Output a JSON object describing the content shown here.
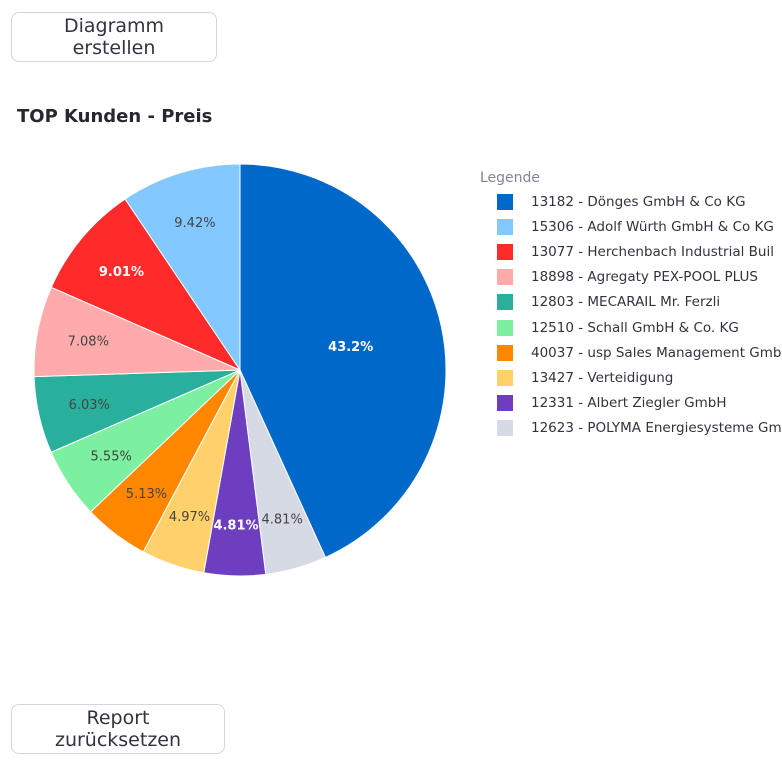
{
  "buttons": {
    "create": "Diagramm erstellen",
    "reset": "Report zurücksetzen"
  },
  "chart_data": {
    "type": "pie",
    "title": "TOP Kunden - Preis",
    "legend_title": "Legende",
    "legend_position": "right",
    "categories": [
      "13182 - Dönges GmbH & Co KG",
      "15306 - Adolf Würth GmbH & Co KG",
      "13077 - Herchenbach Industrial Buil",
      "18898 - Agregaty PEX-POOL PLUS",
      "12803 - MECARAIL Mr. Ferzli",
      "12510 - Schall GmbH & Co. KG",
      "40037 - usp Sales Management Gmb",
      "13427 - Verteidigung",
      "12331 - Albert Ziegler GmbH",
      "12623 - POLYMA Energiesysteme Gm"
    ],
    "values": [
      43.2,
      9.42,
      9.01,
      7.08,
      6.03,
      5.55,
      5.13,
      4.97,
      4.81,
      4.81
    ],
    "labels": [
      "43.2%",
      "9.42%",
      "9.01%",
      "7.08%",
      "6.03%",
      "5.55%",
      "5.13%",
      "4.97%",
      "4.81%",
      "4.81%"
    ],
    "colors": [
      "#0068c9",
      "#83c9ff",
      "#ff2b2b",
      "#ffabab",
      "#29b09d",
      "#7defa1",
      "#ff8700",
      "#ffd16a",
      "#6d3fc0",
      "#d5dae5"
    ],
    "label_colors": [
      "#ffffff",
      "#444444",
      "#ffffff",
      "#444444",
      "#444444",
      "#444444",
      "#444444",
      "#444444",
      "#ffffff",
      "#444444"
    ]
  }
}
